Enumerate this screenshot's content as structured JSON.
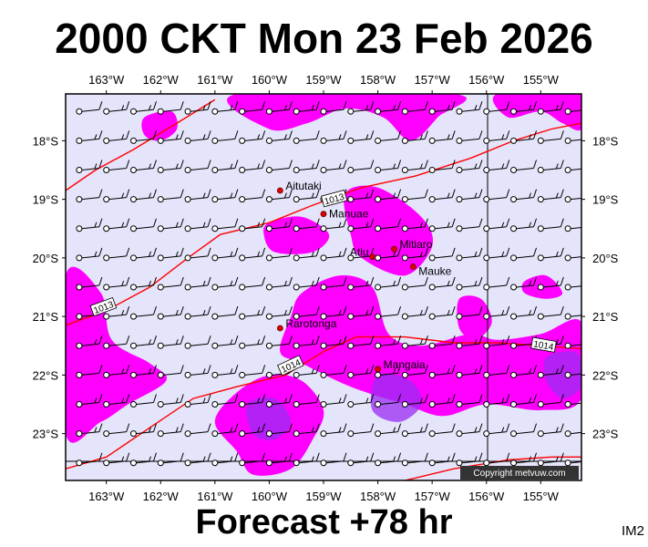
{
  "title": "2000 CKT Mon 23 Feb 2026",
  "footer": "Forecast +78 hr",
  "corner_label": "IM2",
  "copyright": "Copyright metvuw.com",
  "colors": {
    "background": "#e4e4fa",
    "wind_magenta": "#ff00ff",
    "wind_violet": "#9a2cf0",
    "isobar": "#ff0000",
    "place": "#dd0000"
  },
  "axes": {
    "lon_labels": [
      "163°W",
      "162°W",
      "161°W",
      "160°W",
      "159°W",
      "158°W",
      "157°W",
      "156°W",
      "155°W"
    ],
    "lon_values": [
      -163,
      -162,
      -161,
      -160,
      -159,
      -158,
      -157,
      -156,
      -155
    ],
    "lat_labels": [
      "18°S",
      "19°S",
      "20°S",
      "21°S",
      "22°S",
      "23°S"
    ],
    "lat_values": [
      -18,
      -19,
      -20,
      -21,
      -22,
      -23
    ],
    "lon_range": [
      -163.75,
      -154.25
    ],
    "lat_range": [
      -23.8,
      -17.2
    ]
  },
  "places": [
    {
      "name": "Aitutaki",
      "lon": -159.8,
      "lat": -18.85
    },
    {
      "name": "Manuae",
      "lon": -159.0,
      "lat": -19.25
    },
    {
      "name": "Atiu",
      "lon": -158.1,
      "lat": -19.98
    },
    {
      "name": "Mitiaro",
      "lon": -157.7,
      "lat": -19.85
    },
    {
      "name": "Mauke",
      "lon": -157.35,
      "lat": -20.15
    },
    {
      "name": "Rarotonga",
      "lon": -159.8,
      "lat": -21.2
    },
    {
      "name": "Mangaia",
      "lon": -158.0,
      "lat": -21.9
    }
  ],
  "isobars": [
    {
      "label": "1013",
      "points": [
        [
          -163.75,
          -18.85
        ],
        [
          -163.2,
          -18.5
        ],
        [
          -162.5,
          -18.15
        ],
        [
          -161.7,
          -17.7
        ],
        [
          -161.0,
          -17.3
        ]
      ]
    },
    {
      "label": "1013",
      "points": [
        [
          -163.75,
          -21.15
        ],
        [
          -163.0,
          -20.9
        ],
        [
          -162.2,
          -20.5
        ],
        [
          -161.5,
          -20.0
        ],
        [
          -160.9,
          -19.6
        ],
        [
          -160.0,
          -19.4
        ],
        [
          -159.2,
          -19.1
        ],
        [
          -158.3,
          -18.8
        ],
        [
          -157.3,
          -18.6
        ],
        [
          -156.3,
          -18.3
        ],
        [
          -155.5,
          -18.0
        ],
        [
          -154.8,
          -17.8
        ],
        [
          -154.25,
          -17.7
        ]
      ]
    },
    {
      "label": "1014",
      "points": [
        [
          -163.75,
          -23.6
        ],
        [
          -163.0,
          -23.4
        ],
        [
          -162.2,
          -22.9
        ],
        [
          -161.4,
          -22.4
        ],
        [
          -160.6,
          -22.2
        ],
        [
          -159.7,
          -22.0
        ],
        [
          -159.0,
          -21.6
        ],
        [
          -158.4,
          -21.35
        ],
        [
          -157.5,
          -21.35
        ],
        [
          -156.6,
          -21.45
        ],
        [
          -155.8,
          -21.45
        ],
        [
          -155.0,
          -21.5
        ],
        [
          -154.25,
          -21.55
        ]
      ]
    },
    {
      "label": "",
      "points": [
        [
          -157.5,
          -23.8
        ],
        [
          -156.6,
          -23.6
        ],
        [
          -155.6,
          -23.45
        ],
        [
          -154.8,
          -23.4
        ],
        [
          -154.25,
          -23.4
        ]
      ]
    }
  ],
  "isobar_labels": [
    {
      "text": "1013",
      "lon": -158.8,
      "lat": -19.0,
      "angle": -15
    },
    {
      "text": "1013",
      "lon": -163.05,
      "lat": -20.85,
      "angle": -20
    },
    {
      "text": "1014",
      "lon": -159.6,
      "lat": -21.85,
      "angle": -25
    },
    {
      "text": "1014",
      "lon": -154.95,
      "lat": -21.5,
      "angle": 10
    }
  ],
  "wind_magenta_areas": [
    [
      [
        -163.75,
        -20.3
      ],
      [
        -163.1,
        -20.6
      ],
      [
        -162.9,
        -21.4
      ],
      [
        -162.2,
        -21.8
      ],
      [
        -161.9,
        -22.1
      ],
      [
        -162.6,
        -22.5
      ],
      [
        -163.1,
        -22.8
      ],
      [
        -163.75,
        -23.0
      ]
    ],
    [
      [
        -160.6,
        -17.2
      ],
      [
        -160.0,
        -17.8
      ],
      [
        -159.3,
        -17.7
      ],
      [
        -158.6,
        -17.45
      ],
      [
        -157.9,
        -17.6
      ],
      [
        -157.4,
        -18.0
      ],
      [
        -156.9,
        -17.6
      ],
      [
        -156.6,
        -17.2
      ]
    ],
    [
      [
        -155.8,
        -17.2
      ],
      [
        -155.6,
        -17.6
      ],
      [
        -155.0,
        -17.5
      ],
      [
        -154.6,
        -17.7
      ],
      [
        -154.25,
        -17.8
      ],
      [
        -154.25,
        -17.2
      ]
    ],
    [
      [
        -162.3,
        -17.6
      ],
      [
        -161.8,
        -17.5
      ],
      [
        -161.7,
        -17.8
      ],
      [
        -162.0,
        -18.0
      ],
      [
        -162.3,
        -17.9
      ]
    ],
    [
      [
        -160.0,
        -19.4
      ],
      [
        -159.4,
        -19.3
      ],
      [
        -158.9,
        -19.6
      ],
      [
        -159.2,
        -19.9
      ],
      [
        -159.9,
        -19.9
      ],
      [
        -160.1,
        -19.6
      ]
    ],
    [
      [
        -158.6,
        -18.9
      ],
      [
        -158.0,
        -18.8
      ],
      [
        -157.2,
        -19.3
      ],
      [
        -157.0,
        -19.8
      ],
      [
        -157.5,
        -20.3
      ],
      [
        -158.3,
        -20.0
      ],
      [
        -158.5,
        -19.6
      ]
    ],
    [
      [
        -158.7,
        -20.3
      ],
      [
        -158.1,
        -20.5
      ],
      [
        -157.8,
        -21.3
      ],
      [
        -157.2,
        -21.5
      ],
      [
        -156.3,
        -21.3
      ],
      [
        -155.8,
        -21.4
      ],
      [
        -155.0,
        -21.3
      ],
      [
        -154.25,
        -21.1
      ],
      [
        -154.25,
        -22.4
      ],
      [
        -155.0,
        -22.6
      ],
      [
        -156.0,
        -22.5
      ],
      [
        -156.8,
        -22.7
      ],
      [
        -157.5,
        -22.5
      ],
      [
        -158.5,
        -22.2
      ],
      [
        -159.4,
        -21.8
      ],
      [
        -159.8,
        -21.6
      ],
      [
        -159.6,
        -21.0
      ],
      [
        -159.4,
        -20.6
      ]
    ],
    [
      [
        -160.6,
        -22.3
      ],
      [
        -160.0,
        -22.0
      ],
      [
        -159.4,
        -22.1
      ],
      [
        -159.0,
        -22.6
      ],
      [
        -159.2,
        -23.1
      ],
      [
        -159.6,
        -23.6
      ],
      [
        -160.3,
        -23.7
      ],
      [
        -160.6,
        -23.3
      ],
      [
        -161.0,
        -22.8
      ]
    ],
    [
      [
        -156.5,
        -20.7
      ],
      [
        -156.1,
        -20.7
      ],
      [
        -155.9,
        -21.1
      ],
      [
        -156.2,
        -21.4
      ],
      [
        -156.5,
        -21.2
      ]
    ],
    [
      [
        -155.3,
        -20.4
      ],
      [
        -154.9,
        -20.3
      ],
      [
        -154.6,
        -20.6
      ],
      [
        -154.9,
        -20.7
      ],
      [
        -155.3,
        -20.6
      ]
    ]
  ],
  "wind_violet_areas": [
    [
      [
        -160.4,
        -22.5
      ],
      [
        -159.9,
        -22.4
      ],
      [
        -159.6,
        -22.8
      ],
      [
        -159.9,
        -23.1
      ],
      [
        -160.3,
        -23.0
      ]
    ],
    [
      [
        -158.0,
        -22.0
      ],
      [
        -157.4,
        -22.1
      ],
      [
        -157.2,
        -22.5
      ],
      [
        -157.6,
        -22.8
      ],
      [
        -158.1,
        -22.6
      ]
    ],
    [
      [
        -154.9,
        -21.7
      ],
      [
        -154.4,
        -21.6
      ],
      [
        -154.25,
        -21.8
      ],
      [
        -154.25,
        -22.2
      ],
      [
        -154.6,
        -22.4
      ],
      [
        -154.9,
        -22.1
      ]
    ]
  ],
  "barbs": {
    "lon_start": -163.5,
    "lon_step": 0.5,
    "lon_count": 19,
    "lat_start": -17.5,
    "lat_step": -0.5,
    "lat_count": 13
  }
}
